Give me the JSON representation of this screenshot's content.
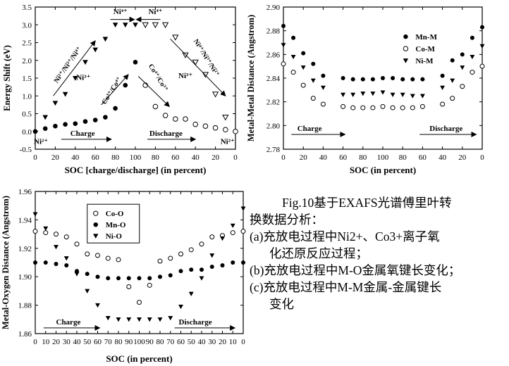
{
  "chart_data": [
    {
      "type": "scatter",
      "ylabel": "Energy Shift (eV)",
      "xlabel": "SOC [charge/discharge] (in percent)",
      "ylim": [
        -0.5,
        3.5
      ],
      "yticks": [
        "3.5",
        "3.0",
        "2.5",
        "2.0",
        "1.5",
        "1.0",
        "0.5",
        "0.0",
        "-0.5"
      ],
      "xticks": [
        "0",
        "20",
        "40",
        "60",
        "80",
        "100",
        "80",
        "60",
        "40",
        "20",
        "0"
      ],
      "x": [
        0,
        10,
        20,
        30,
        40,
        50,
        60,
        70,
        80,
        90,
        100,
        110,
        120,
        130,
        140,
        150,
        160,
        170,
        180,
        190,
        200
      ],
      "series": [
        {
          "marker": "filled-circle",
          "values": [
            0.0,
            0.08,
            0.15,
            0.2,
            0.22,
            0.28,
            0.32,
            0.4,
            0.65,
            1.3,
            1.95,
            null,
            null,
            null,
            null,
            null,
            null,
            null,
            null,
            null,
            null
          ]
        },
        {
          "marker": "filled-triangle",
          "values": [
            null,
            0.4,
            0.8,
            1.05,
            1.5,
            1.95,
            2.3,
            2.6,
            3.0,
            3.0,
            3.0,
            null,
            null,
            null,
            null,
            null,
            null,
            null,
            null,
            null,
            null
          ]
        },
        {
          "marker": "open-circle",
          "values": [
            null,
            null,
            null,
            null,
            null,
            null,
            null,
            null,
            null,
            null,
            null,
            1.3,
            0.7,
            0.45,
            0.35,
            0.35,
            0.2,
            0.15,
            0.1,
            0.05,
            0.0
          ]
        },
        {
          "marker": "open-triangle",
          "values": [
            null,
            null,
            null,
            null,
            null,
            null,
            null,
            null,
            null,
            null,
            null,
            3.0,
            3.0,
            3.0,
            2.65,
            2.15,
            1.95,
            1.6,
            1.05,
            0.4,
            null
          ]
        }
      ],
      "annotations": {
        "ni2_left": "Ni²⁺",
        "ni2_right": "Ni²⁺",
        "ni3_left": "Ni³⁺",
        "ni3_right": "Ni³⁺",
        "ni4_a": "Ni⁴⁺",
        "ni4_b": "Ni⁴⁺",
        "ni_up": "Ni²⁺/Ni³⁺/Ni⁴⁺",
        "ni_down": "Ni⁴⁺/Ni³⁺/Ni²⁺",
        "co_up": "Co³⁺/Co⁴⁺",
        "co_down": "Co⁴⁺/Co³⁺",
        "charge": "Charge",
        "discharge": "Discharge"
      }
    },
    {
      "type": "scatter",
      "ylabel": "Metal-Metal Distance (Angstrom)",
      "xlabel": "SOC (in percent)",
      "ylim": [
        2.78,
        2.9
      ],
      "yticks": [
        "2.90",
        "2.88",
        "2.86",
        "2.84",
        "2.82",
        "2.80",
        "2.78"
      ],
      "xticks": [
        "0",
        "20",
        "40",
        "60",
        "80",
        "100",
        "80",
        "60",
        "40",
        "20",
        "0"
      ],
      "x": [
        0,
        10,
        20,
        30,
        40,
        60,
        70,
        80,
        90,
        100,
        110,
        120,
        130,
        140,
        160,
        170,
        180,
        190,
        200
      ],
      "series": [
        {
          "name": "Mn-M",
          "marker": "filled-circle",
          "values": [
            2.884,
            2.874,
            2.861,
            2.852,
            2.842,
            2.84,
            2.839,
            2.839,
            2.839,
            2.84,
            2.84,
            2.839,
            2.839,
            2.839,
            2.842,
            2.855,
            2.86,
            2.874,
            2.883
          ]
        },
        {
          "name": "Co-M",
          "marker": "open-circle",
          "values": [
            2.852,
            2.845,
            2.834,
            2.823,
            2.818,
            2.816,
            2.815,
            2.815,
            2.815,
            2.816,
            2.815,
            2.815,
            2.815,
            2.816,
            2.818,
            2.823,
            2.833,
            2.845,
            2.85
          ]
        },
        {
          "name": "Ni-M",
          "marker": "filled-triangle",
          "values": [
            2.868,
            2.858,
            2.849,
            2.838,
            2.832,
            2.826,
            2.826,
            2.827,
            2.827,
            2.828,
            2.826,
            2.826,
            2.825,
            2.825,
            2.832,
            2.838,
            2.849,
            2.858,
            2.867
          ]
        }
      ],
      "legend_position": "top-right",
      "annotations": {
        "charge": "Charge",
        "discharge": "Discharge"
      }
    },
    {
      "type": "scatter",
      "ylabel": "Metal-Oxygen Distance (Angstrom)",
      "xlabel": "SOC (in percent)",
      "ylim": [
        1.86,
        1.96
      ],
      "yticks": [
        "1.96",
        "1.94",
        "1.92",
        "1.90",
        "1.88",
        "1.86"
      ],
      "xticks": [
        "0",
        "10",
        "20",
        "30",
        "40",
        "50",
        "60",
        "70",
        "80",
        "90",
        "100",
        "90",
        "80",
        "70",
        "60",
        "50",
        "40",
        "30",
        "20",
        "10",
        "0"
      ],
      "x": [
        0,
        10,
        20,
        30,
        40,
        50,
        60,
        70,
        80,
        90,
        100,
        110,
        120,
        130,
        140,
        150,
        160,
        170,
        180,
        190,
        200
      ],
      "series": [
        {
          "name": "Co-O",
          "marker": "open-circle",
          "values": [
            1.932,
            1.931,
            1.93,
            1.928,
            1.923,
            1.916,
            1.915,
            1.913,
            1.912,
            1.893,
            1.882,
            1.894,
            1.911,
            1.913,
            1.916,
            1.919,
            1.923,
            1.928,
            1.929,
            1.931,
            1.932
          ]
        },
        {
          "name": "Mn-O",
          "marker": "filled-circle",
          "values": [
            1.91,
            1.91,
            1.909,
            1.908,
            1.904,
            1.902,
            1.9,
            1.899,
            1.899,
            1.899,
            1.899,
            1.899,
            1.9,
            1.901,
            1.904,
            1.905,
            1.905,
            1.907,
            1.908,
            1.91,
            1.91
          ]
        },
        {
          "name": "Ni-O",
          "marker": "filled-triangle",
          "values": [
            1.944,
            1.934,
            1.921,
            1.913,
            1.902,
            1.89,
            1.88,
            1.871,
            1.87,
            1.87,
            1.87,
            1.87,
            1.87,
            1.871,
            1.879,
            1.888,
            1.899,
            1.915,
            1.927,
            1.936,
            1.948
          ]
        }
      ],
      "legend_position": "top-left",
      "annotations": {
        "charge": "Charge",
        "discharge": "Discharge"
      }
    }
  ],
  "caption": {
    "line1": "Fig.10基于EXAFS光谱傅里叶转",
    "line2": "换数据分析：",
    "line3": "(a)充放电过程中Ni2+、Co3+离子氧",
    "line4": "化还原反应过程；",
    "line5": "(b)充放电过程中M-O金属氧键长变化；",
    "line6": "(c)充放电过程中M-M金属-金属键长",
    "line7": "变化"
  }
}
